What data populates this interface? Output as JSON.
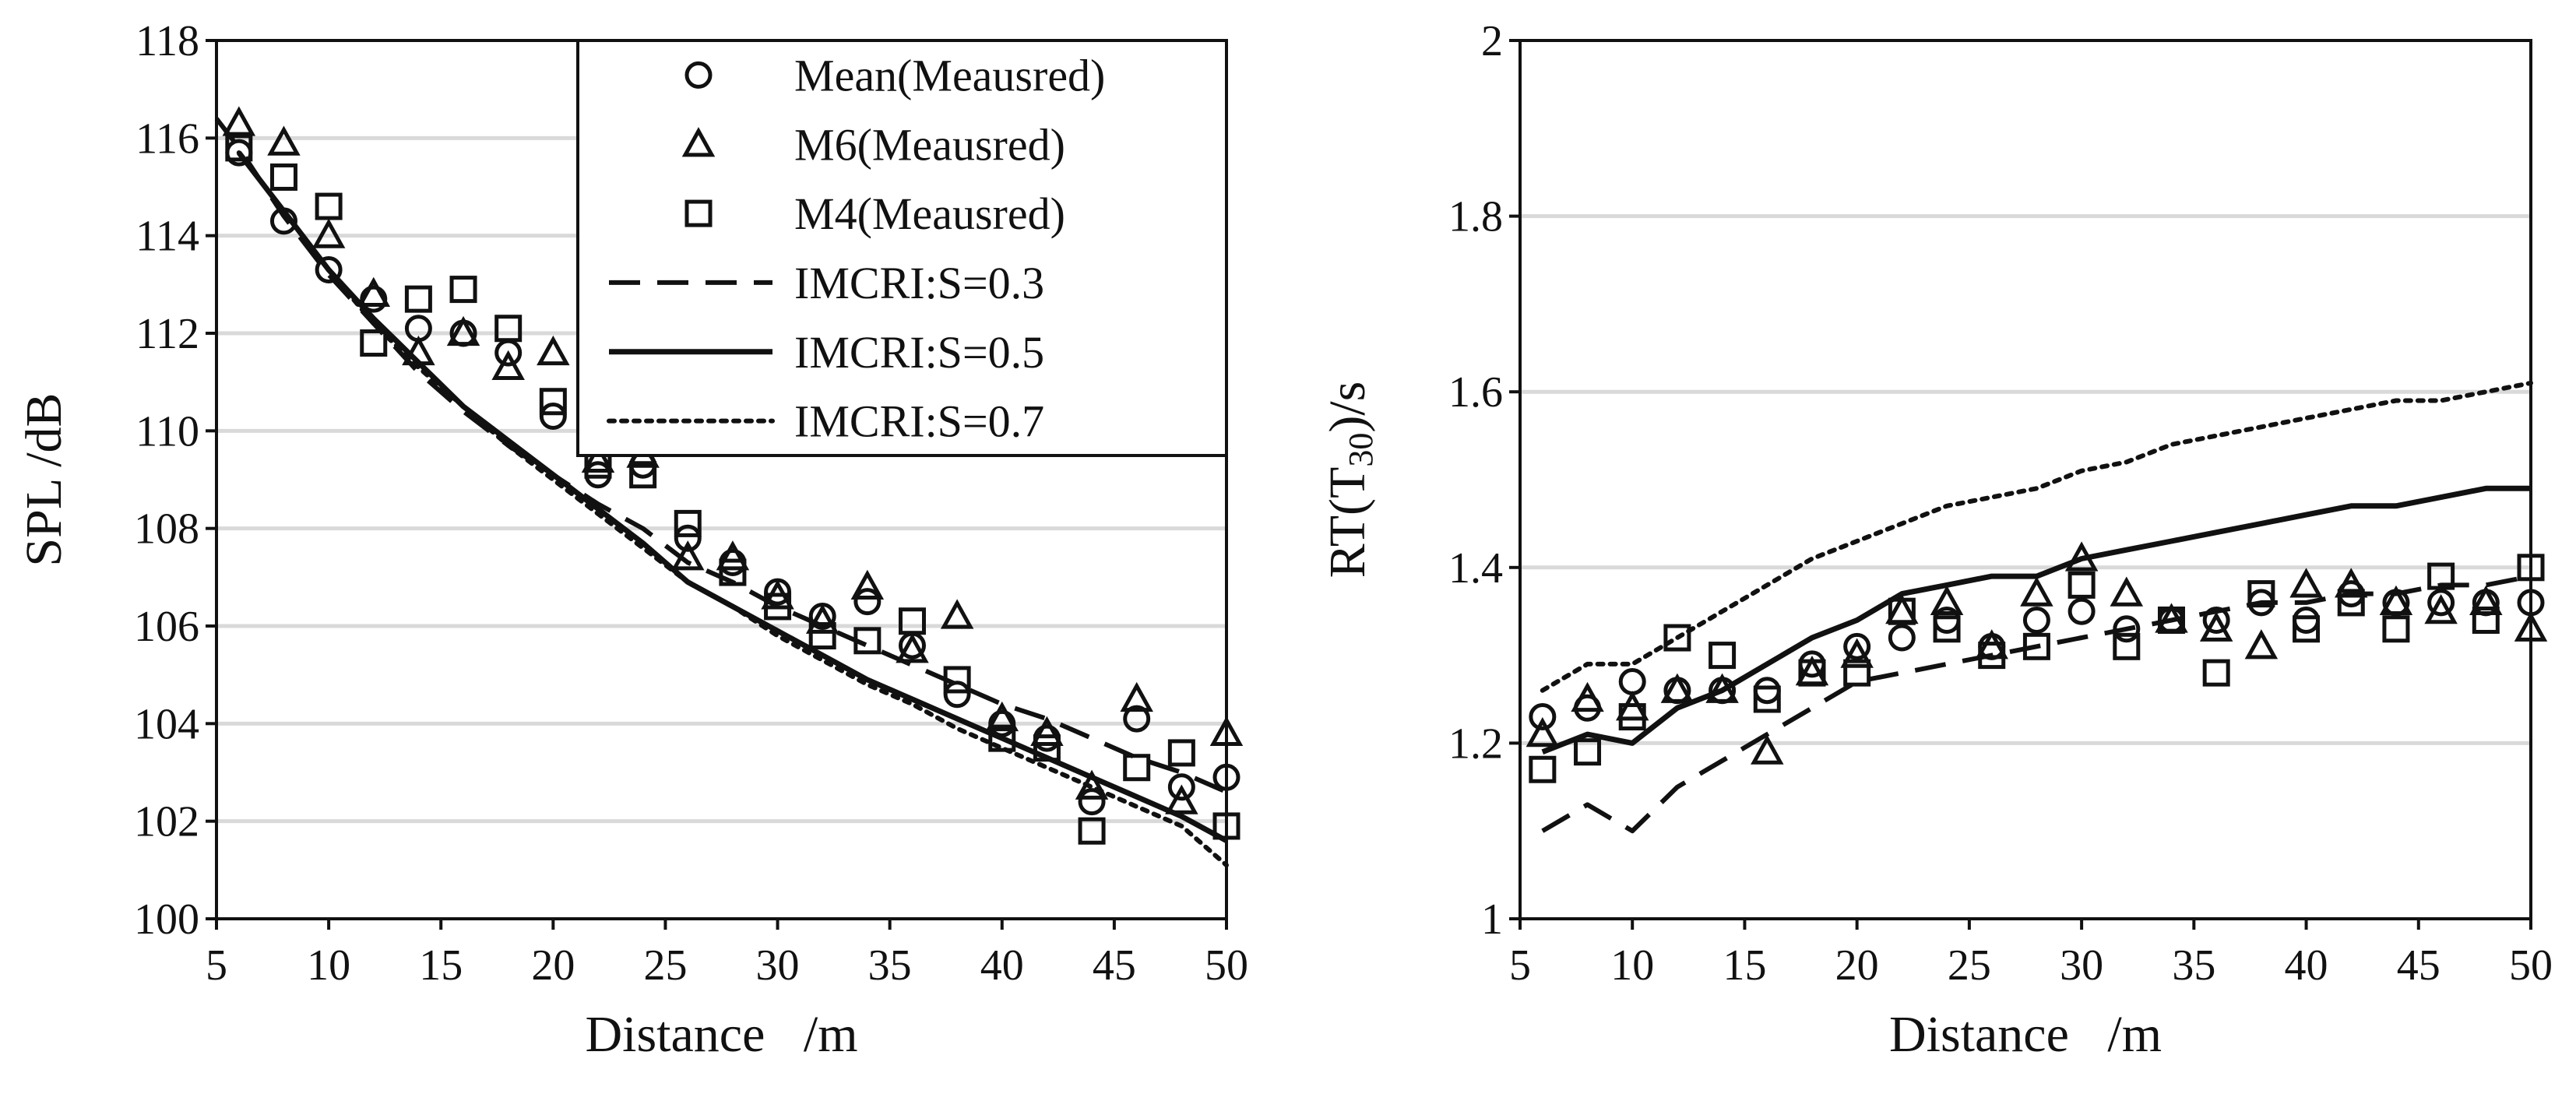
{
  "chart_data": [
    {
      "type": "scatter",
      "xlabel": "Distance   /m",
      "ylabel": "SPL /dB",
      "xlim": [
        5,
        50
      ],
      "ylim": [
        100,
        118
      ],
      "xticks": [
        "5",
        "10",
        "15",
        "20",
        "25",
        "30",
        "35",
        "40",
        "45",
        "50"
      ],
      "yticks": [
        "100",
        "102",
        "104",
        "106",
        "108",
        "110",
        "112",
        "114",
        "116",
        "118"
      ],
      "grid": "horizontal",
      "legend_position": "top-right",
      "series": [
        {
          "name": "Mean(Meausred)",
          "marker": "circle",
          "x": [
            6,
            8,
            10,
            12,
            14,
            16,
            18,
            20,
            22,
            24,
            26,
            28,
            30,
            32,
            34,
            36,
            38,
            40,
            42,
            44,
            46,
            48,
            50
          ],
          "y": [
            115.7,
            114.3,
            113.3,
            112.7,
            112.1,
            112.0,
            111.6,
            110.3,
            109.1,
            109.3,
            107.8,
            107.3,
            106.7,
            106.2,
            106.5,
            105.6,
            104.6,
            104.0,
            103.7,
            102.4,
            104.1,
            102.7,
            102.9
          ]
        },
        {
          "name": "M6(Meausred)",
          "marker": "triangle",
          "x": [
            6,
            8,
            10,
            12,
            14,
            16,
            18,
            20,
            22,
            24,
            26,
            28,
            30,
            32,
            34,
            36,
            38,
            40,
            42,
            44,
            46,
            48,
            50
          ],
          "y": [
            116.3,
            115.9,
            114.0,
            112.8,
            111.6,
            112.0,
            111.3,
            111.6,
            109.4,
            109.5,
            107.4,
            107.4,
            106.6,
            106.1,
            106.8,
            105.5,
            106.2,
            104.1,
            103.8,
            102.7,
            104.5,
            102.4,
            103.8
          ]
        },
        {
          "name": "M4(Meausred)",
          "marker": "square",
          "x": [
            6,
            8,
            10,
            12,
            14,
            16,
            18,
            20,
            22,
            24,
            26,
            28,
            30,
            32,
            34,
            36,
            38,
            40,
            42,
            44,
            46,
            48,
            50
          ],
          "y": [
            115.8,
            115.2,
            114.6,
            111.8,
            112.7,
            112.9,
            112.1,
            110.6,
            109.3,
            109.1,
            108.1,
            107.1,
            106.4,
            105.8,
            105.7,
            106.1,
            104.9,
            103.7,
            103.5,
            101.8,
            103.1,
            103.4,
            101.9
          ]
        },
        {
          "name": "IMCRI:S=0.3",
          "line": "dashed",
          "x": [
            5,
            6,
            8,
            10,
            12,
            14,
            16,
            18,
            20,
            22,
            24,
            26,
            28,
            30,
            32,
            34,
            36,
            38,
            40,
            42,
            44,
            46,
            48,
            50
          ],
          "y": [
            116.4,
            115.8,
            114.4,
            113.2,
            112.2,
            111.2,
            110.4,
            109.7,
            109.1,
            108.5,
            108.0,
            107.3,
            106.9,
            106.4,
            106.0,
            105.6,
            105.2,
            104.8,
            104.4,
            104.1,
            103.7,
            103.3,
            103.0,
            102.6
          ]
        },
        {
          "name": "IMCRI:S=0.5",
          "line": "solid",
          "x": [
            6,
            8,
            10,
            12,
            14,
            16,
            18,
            20,
            22,
            24,
            26,
            28,
            30,
            32,
            34,
            36,
            38,
            40,
            42,
            44,
            46,
            48,
            50
          ],
          "y": [
            115.7,
            114.5,
            113.3,
            112.3,
            111.4,
            110.5,
            109.8,
            109.1,
            108.4,
            107.7,
            106.9,
            106.4,
            105.9,
            105.4,
            104.9,
            104.5,
            104.1,
            103.7,
            103.3,
            102.9,
            102.5,
            102.1,
            101.6
          ]
        },
        {
          "name": "IMCRI:S=0.7",
          "line": "dotted",
          "x": [
            6,
            8,
            10,
            12,
            14,
            16,
            18,
            20,
            22,
            24,
            26,
            28,
            30,
            32,
            34,
            36,
            38,
            40,
            42,
            44,
            46,
            48,
            50
          ],
          "y": [
            115.7,
            114.5,
            113.3,
            112.2,
            111.3,
            110.5,
            109.7,
            109.0,
            108.3,
            107.6,
            106.9,
            106.4,
            105.8,
            105.3,
            104.8,
            104.4,
            103.9,
            103.5,
            103.1,
            102.7,
            102.3,
            101.9,
            101.1
          ]
        }
      ]
    },
    {
      "type": "scatter",
      "xlabel": "Distance   /m",
      "ylabel_prefix": "RT(T",
      "ylabel_sub": "30",
      "ylabel_suffix": ")/s",
      "xlim": [
        5,
        50
      ],
      "ylim": [
        1,
        2
      ],
      "xticks": [
        "5",
        "10",
        "15",
        "20",
        "25",
        "30",
        "35",
        "40",
        "45",
        "50"
      ],
      "yticks": [
        "1",
        "1.2",
        "1.4",
        "1.6",
        "1.8",
        "2"
      ],
      "grid": "horizontal",
      "series": [
        {
          "name": "Mean(Meausred)",
          "marker": "circle",
          "x": [
            6,
            8,
            10,
            12,
            14,
            16,
            18,
            20,
            22,
            24,
            26,
            28,
            30,
            32,
            34,
            36,
            38,
            40,
            42,
            44,
            46,
            48,
            50
          ],
          "y": [
            1.23,
            1.24,
            1.27,
            1.26,
            1.26,
            1.26,
            1.29,
            1.31,
            1.32,
            1.34,
            1.31,
            1.34,
            1.35,
            1.33,
            1.34,
            1.34,
            1.36,
            1.34,
            1.37,
            1.36,
            1.36,
            1.36,
            1.36
          ]
        },
        {
          "name": "M6(Meausred)",
          "marker": "triangle",
          "x": [
            6,
            8,
            10,
            12,
            14,
            16,
            18,
            20,
            22,
            24,
            26,
            28,
            30,
            32,
            34,
            36,
            38,
            40,
            42,
            44,
            46,
            48,
            50
          ],
          "y": [
            1.21,
            1.25,
            1.24,
            1.26,
            1.26,
            1.19,
            1.28,
            1.3,
            1.35,
            1.36,
            1.31,
            1.37,
            1.41,
            1.37,
            1.34,
            1.33,
            1.31,
            1.38,
            1.38,
            1.36,
            1.35,
            1.36,
            1.33
          ]
        },
        {
          "name": "M4(Meausred)",
          "marker": "square",
          "x": [
            6,
            8,
            10,
            12,
            14,
            16,
            18,
            20,
            22,
            24,
            26,
            28,
            30,
            32,
            34,
            36,
            38,
            40,
            42,
            44,
            46,
            48,
            50
          ],
          "y": [
            1.17,
            1.19,
            1.23,
            1.32,
            1.3,
            1.25,
            1.28,
            1.28,
            1.35,
            1.33,
            1.3,
            1.31,
            1.38,
            1.31,
            1.34,
            1.28,
            1.37,
            1.33,
            1.36,
            1.33,
            1.39,
            1.34,
            1.4
          ]
        },
        {
          "name": "IMCRI:S=0.3",
          "line": "dashed",
          "x": [
            6,
            8,
            10,
            12,
            14,
            16,
            18,
            20,
            22,
            24,
            26,
            28,
            30,
            32,
            34,
            36,
            38,
            40,
            42,
            44,
            46,
            48,
            50
          ],
          "y": [
            1.1,
            1.13,
            1.1,
            1.15,
            1.18,
            1.21,
            1.24,
            1.27,
            1.28,
            1.29,
            1.3,
            1.31,
            1.32,
            1.33,
            1.34,
            1.35,
            1.36,
            1.36,
            1.37,
            1.37,
            1.38,
            1.38,
            1.39
          ]
        },
        {
          "name": "IMCRI:S=0.5",
          "line": "solid",
          "x": [
            6,
            8,
            10,
            12,
            14,
            16,
            18,
            20,
            22,
            24,
            26,
            28,
            30,
            32,
            34,
            36,
            38,
            40,
            42,
            44,
            46,
            48,
            50
          ],
          "y": [
            1.19,
            1.21,
            1.2,
            1.24,
            1.26,
            1.29,
            1.32,
            1.34,
            1.37,
            1.38,
            1.39,
            1.39,
            1.41,
            1.42,
            1.43,
            1.44,
            1.45,
            1.46,
            1.47,
            1.47,
            1.48,
            1.49,
            1.49
          ]
        },
        {
          "name": "IMCRI:S=0.7",
          "line": "dotted",
          "x": [
            6,
            8,
            10,
            12,
            14,
            16,
            18,
            20,
            22,
            24,
            26,
            28,
            30,
            32,
            34,
            36,
            38,
            40,
            42,
            44,
            46,
            48,
            50
          ],
          "y": [
            1.26,
            1.29,
            1.29,
            1.32,
            1.35,
            1.38,
            1.41,
            1.43,
            1.45,
            1.47,
            1.48,
            1.49,
            1.51,
            1.52,
            1.54,
            1.55,
            1.56,
            1.57,
            1.58,
            1.59,
            1.59,
            1.6,
            1.61
          ]
        }
      ]
    }
  ]
}
